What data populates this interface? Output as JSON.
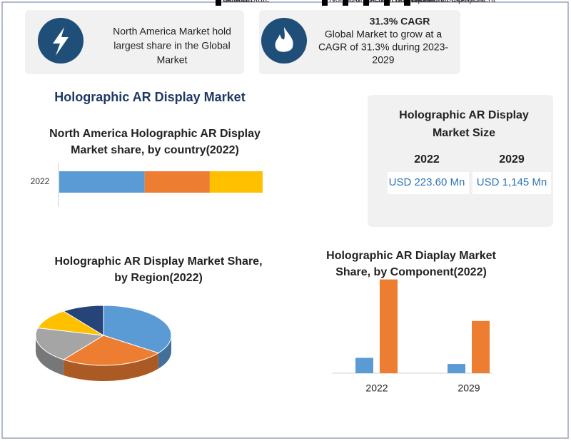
{
  "cards": [
    {
      "lines": [
        "North America Market hold",
        "largest share in the Global",
        "Market"
      ]
    },
    {
      "heading": "31.3% CAGR",
      "lines": [
        "Global Market to grow at a",
        "CAGR of 31.3% during 2023-",
        "2029"
      ]
    }
  ],
  "title": "Holographic AR Display Market",
  "market_size": {
    "title_lines": [
      "Holographic AR Display",
      "Market Size"
    ],
    "years": [
      "2022",
      "2029"
    ],
    "values": [
      "USD 223.60 Mn",
      "USD 1,145 Mn"
    ]
  },
  "chart_data": [
    {
      "type": "hbar",
      "title_lines": [
        "North America Holographic AR Display",
        "Market share, by country(2022)"
      ],
      "categories": [
        "2022"
      ],
      "xlim": [
        0,
        100
      ],
      "series": [
        {
          "name": "United State",
          "color": "#5b9bd5",
          "values": [
            42
          ]
        },
        {
          "name": "Canada",
          "color": "#ed7d31",
          "values": [
            32
          ]
        },
        {
          "name": "Mexico",
          "color": "#ffc000",
          "values": [
            26
          ]
        }
      ]
    },
    {
      "type": "pie",
      "title_lines": [
        "Holographic AR Display Market Share,",
        "by Region(2022)"
      ],
      "categories": [
        "North America",
        "Europe",
        "Asia Pacific",
        "Latin America",
        "MEA"
      ],
      "values": [
        35,
        25,
        19,
        11,
        10
      ],
      "colors": [
        "#5b9bd5",
        "#ed7d31",
        "#a5a5a5",
        "#ffc000",
        "#264478"
      ]
    },
    {
      "type": "bar",
      "title_lines": [
        "Holographic AR Diaplay Market",
        "Share, by Component(2022)"
      ],
      "categories": [
        "2022",
        "2029"
      ],
      "ylim": [
        0,
        130
      ],
      "series": [
        {
          "name": "Electronic Component",
          "color": "#5b9bd5",
          "values": [
            20,
            12
          ]
        },
        {
          "name": "Optical Component",
          "color": "#ed7d31",
          "values": [
            122,
            68
          ]
        }
      ]
    }
  ]
}
